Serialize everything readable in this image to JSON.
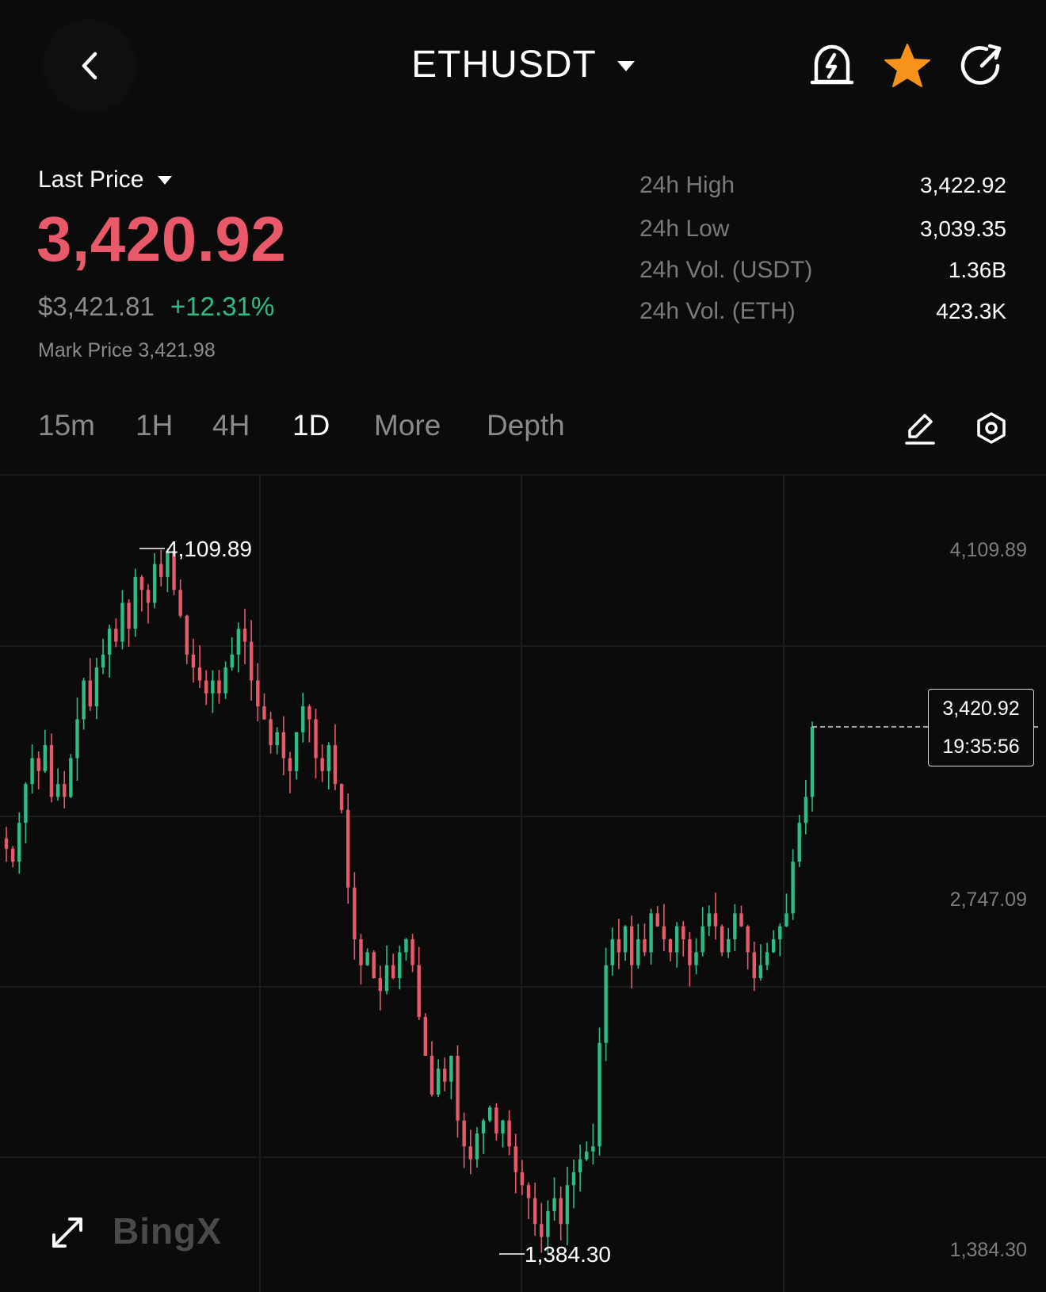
{
  "header": {
    "pair": "ETHUSDT",
    "icons": {
      "back": "chevron-left-icon",
      "alert": "price-alert-bell-icon",
      "favorite": "star-icon",
      "share": "share-icon"
    },
    "favorite_color": "#f7931a"
  },
  "price": {
    "label": "Last Price",
    "last": "3,420.92",
    "usd": "$3,421.81",
    "change": "+12.31%",
    "mark": "Mark Price 3,421.98",
    "colors": {
      "down": "#e9596a",
      "up": "#2ebd85"
    }
  },
  "stats": [
    {
      "label": "24h High",
      "value": "3,422.92"
    },
    {
      "label": "24h Low",
      "value": "3,039.35"
    },
    {
      "label": "24h Vol. (USDT)",
      "value": "1.36B"
    },
    {
      "label": "24h Vol. (ETH)",
      "value": "423.3K"
    }
  ],
  "intervals": [
    "15m",
    "1H",
    "4H",
    "1D",
    "More",
    "Depth"
  ],
  "active_interval": "1D",
  "tools": {
    "draw": "pencil-icon",
    "settings": "settings-hexagon-icon"
  },
  "chart_data": {
    "type": "candlestick",
    "y_axis_labels": [
      "4,109.89",
      "2,747.09",
      "1,384.30"
    ],
    "high_label": "4,109.89",
    "low_label": "1,384.30",
    "current_price": "3,420.92",
    "countdown": "19:35:56",
    "ylim": [
      1384.3,
      4109.89
    ],
    "close_series": [
      2950,
      2900,
      3050,
      3200,
      3300,
      3250,
      3350,
      3150,
      3200,
      3150,
      3300,
      3450,
      3600,
      3500,
      3650,
      3700,
      3800,
      3750,
      3900,
      3800,
      4000,
      3950,
      3900,
      4050,
      4000,
      4100,
      3950,
      3850,
      3700,
      3650,
      3600,
      3550,
      3600,
      3550,
      3650,
      3700,
      3800,
      3750,
      3600,
      3500,
      3450,
      3350,
      3400,
      3300,
      3250,
      3400,
      3500,
      3450,
      3300,
      3250,
      3350,
      3200,
      3100,
      2800,
      2600,
      2500,
      2550,
      2450,
      2400,
      2500,
      2450,
      2550,
      2600,
      2500,
      2300,
      2150,
      2000,
      2100,
      2050,
      2150,
      1900,
      1800,
      1750,
      1850,
      1900,
      1950,
      1850,
      1900,
      1800,
      1700,
      1650,
      1600,
      1500,
      1450,
      1550,
      1600,
      1500,
      1650,
      1700,
      1750,
      1780,
      1800,
      2200,
      2500,
      2600,
      2550,
      2650,
      2500,
      2600,
      2550,
      2700,
      2650,
      2600,
      2550,
      2650,
      2600,
      2500,
      2550,
      2650,
      2700,
      2650,
      2550,
      2600,
      2700,
      2650,
      2550,
      2450,
      2500,
      2550,
      2600,
      2650,
      2700,
      2900,
      3050,
      3150,
      3420.92
    ]
  },
  "footer": {
    "logo": "BingX",
    "expand_icon": "expand-arrows-icon"
  }
}
